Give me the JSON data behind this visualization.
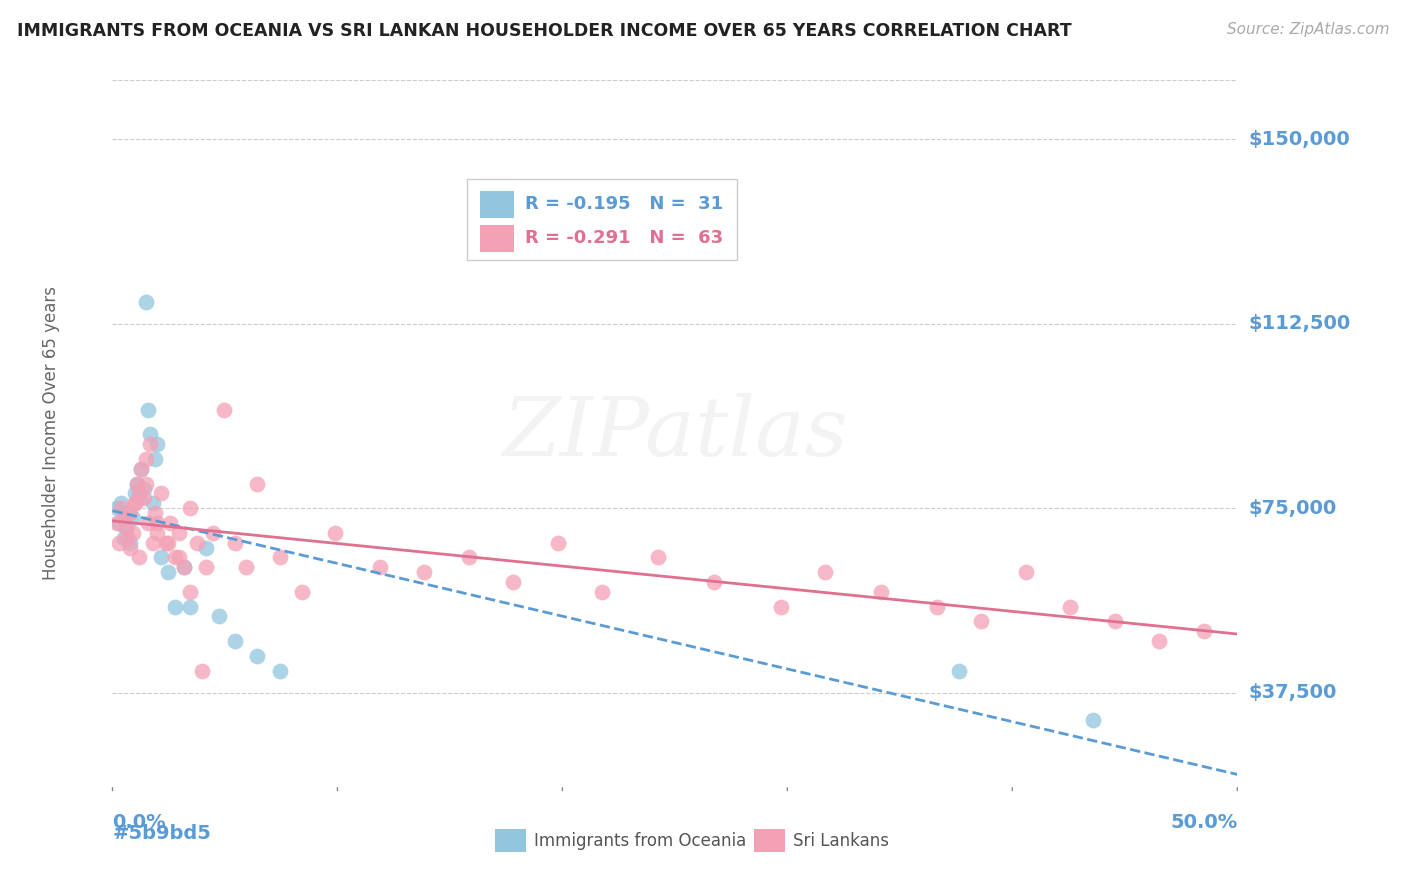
{
  "title": "IMMIGRANTS FROM OCEANIA VS SRI LANKAN HOUSEHOLDER INCOME OVER 65 YEARS CORRELATION CHART",
  "source": "Source: ZipAtlas.com",
  "ylabel": "Householder Income Over 65 years",
  "ytick_labels": [
    "$37,500",
    "$75,000",
    "$112,500",
    "$150,000"
  ],
  "ytick_values": [
    37500,
    75000,
    112500,
    150000
  ],
  "ymin": 18750,
  "ymax": 162000,
  "xmin": 0.0,
  "xmax": 0.505,
  "title_color": "#222222",
  "source_color": "#aaaaaa",
  "ytick_color": "#5b9bd5",
  "xtick_color": "#5b9bd5",
  "grid_color": "#cccccc",
  "watermark": "ZIPatlas",
  "color_blue": "#92c5de",
  "color_pink": "#f4a0b5",
  "line_blue": "#5b9bd5",
  "line_pink": "#e07090",
  "legend_text_blue": "R = -0.195   N =  31",
  "legend_text_pink": "R = -0.291   N =  63",
  "bottom_label1": "Immigrants from Oceania",
  "bottom_label2": "Sri Lankans",
  "oceania_x": [
    0.002,
    0.003,
    0.004,
    0.005,
    0.006,
    0.007,
    0.008,
    0.009,
    0.01,
    0.011,
    0.012,
    0.013,
    0.014,
    0.015,
    0.016,
    0.017,
    0.018,
    0.019,
    0.02,
    0.022,
    0.025,
    0.028,
    0.032,
    0.035,
    0.042,
    0.048,
    0.055,
    0.065,
    0.075,
    0.38,
    0.44
  ],
  "oceania_y": [
    75000,
    72000,
    76000,
    69000,
    71000,
    74000,
    68000,
    73000,
    78000,
    80000,
    77000,
    83000,
    79000,
    117000,
    95000,
    90000,
    76000,
    85000,
    88000,
    65000,
    62000,
    55000,
    63000,
    55000,
    67000,
    53000,
    48000,
    45000,
    42000,
    42000,
    32000
  ],
  "srilanka_x": [
    0.002,
    0.003,
    0.004,
    0.005,
    0.006,
    0.007,
    0.008,
    0.009,
    0.01,
    0.011,
    0.012,
    0.013,
    0.014,
    0.015,
    0.016,
    0.017,
    0.018,
    0.019,
    0.02,
    0.022,
    0.024,
    0.026,
    0.028,
    0.03,
    0.032,
    0.035,
    0.038,
    0.042,
    0.045,
    0.05,
    0.055,
    0.06,
    0.065,
    0.075,
    0.085,
    0.1,
    0.12,
    0.14,
    0.16,
    0.18,
    0.2,
    0.22,
    0.245,
    0.27,
    0.3,
    0.32,
    0.345,
    0.37,
    0.39,
    0.41,
    0.43,
    0.45,
    0.47,
    0.49,
    0.008,
    0.01,
    0.012,
    0.015,
    0.02,
    0.025,
    0.03,
    0.035,
    0.04
  ],
  "srilanka_y": [
    72000,
    68000,
    75000,
    73000,
    71000,
    69000,
    74000,
    70000,
    76000,
    80000,
    65000,
    83000,
    77000,
    85000,
    72000,
    88000,
    68000,
    74000,
    70000,
    78000,
    68000,
    72000,
    65000,
    70000,
    63000,
    75000,
    68000,
    63000,
    70000,
    95000,
    68000,
    63000,
    80000,
    65000,
    58000,
    70000,
    63000,
    62000,
    65000,
    60000,
    68000,
    58000,
    65000,
    60000,
    55000,
    62000,
    58000,
    55000,
    52000,
    62000,
    55000,
    52000,
    48000,
    50000,
    67000,
    76000,
    78000,
    80000,
    72000,
    68000,
    65000,
    58000,
    42000
  ]
}
